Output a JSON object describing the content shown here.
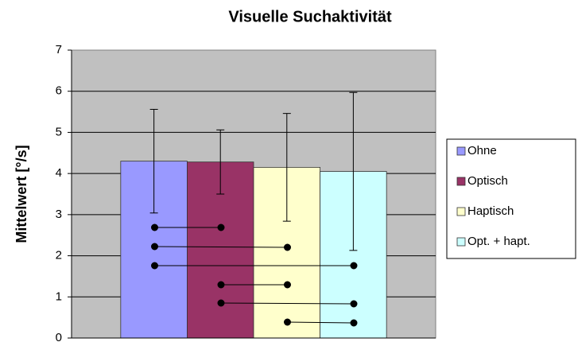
{
  "chart_data": {
    "type": "bar",
    "title": "Visuelle Suchaktivität",
    "y_label": "Mittelwert [°/s]",
    "categories": [
      null
    ],
    "series": [
      {
        "name": "Ohne",
        "color": "#9999ff",
        "values": [
          4.3
        ],
        "errors": [
          1.26
        ]
      },
      {
        "name": "Optisch",
        "color": "#993366",
        "values": [
          4.28
        ],
        "errors": [
          0.78
        ]
      },
      {
        "name": "Haptisch",
        "color": "#ffffcc",
        "values": [
          4.15
        ],
        "errors": [
          1.31
        ]
      },
      {
        "name": "Opt. + hapt.",
        "color": "#ccffff",
        "values": [
          4.05
        ],
        "errors": [
          1.92
        ]
      }
    ],
    "ylim": [
      0,
      7
    ],
    "yticks": [
      0,
      1,
      2,
      3,
      4,
      5,
      6,
      7
    ],
    "grid": true,
    "legend": "right"
  }
}
